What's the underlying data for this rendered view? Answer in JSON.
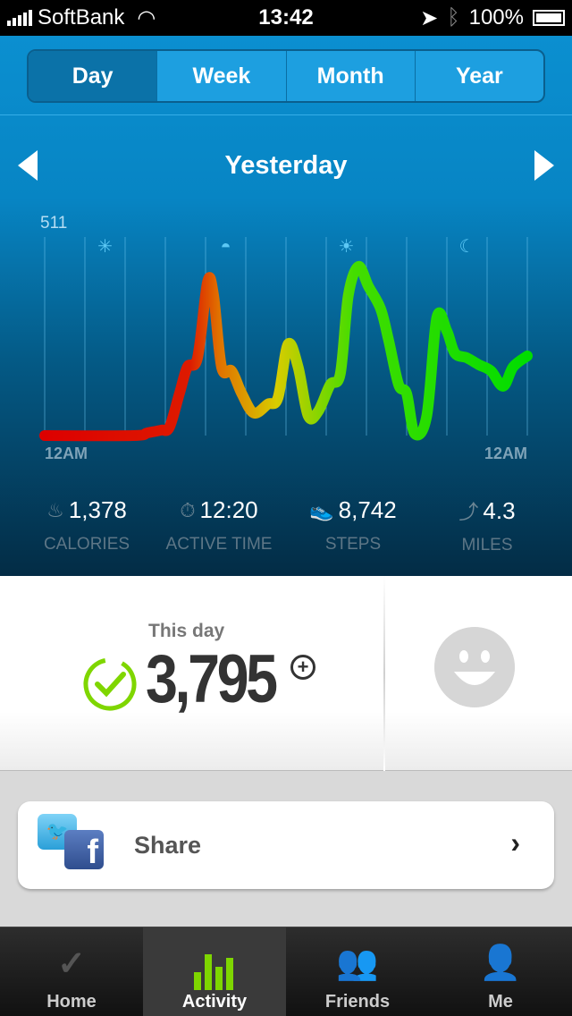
{
  "status": {
    "carrier": "SoftBank",
    "time": "13:42",
    "battery": "100%"
  },
  "segments": [
    "Day",
    "Week",
    "Month",
    "Year"
  ],
  "selected_segment": "Day",
  "period_title": "Yesterday",
  "chart_data": {
    "type": "line",
    "y_max_label": "511",
    "ylim": [
      0,
      511
    ],
    "xlim": [
      0,
      24
    ],
    "x_tick_labels": [
      "12AM",
      "12AM"
    ],
    "time_icons": [
      "night-star-icon",
      "sunrise-icon",
      "sun-icon",
      "moon-icon"
    ],
    "color_scale": [
      "#dd0000",
      "#e07000",
      "#d8cc00",
      "#00dd00"
    ],
    "x": [
      0,
      4.4,
      5.1,
      5.8,
      6.2,
      6.7,
      7.1,
      7.6,
      8.1,
      8.4,
      8.8,
      9.3,
      9.8,
      10.4,
      11.1,
      11.6,
      12.1,
      12.6,
      13.1,
      13.6,
      14.2,
      14.7,
      15.1,
      15.6,
      16.1,
      16.7,
      17.1,
      17.6,
      18,
      18.4,
      19,
      19.5,
      20,
      20.4,
      21,
      21.6,
      22.2,
      22.8,
      23.3,
      24
    ],
    "y": [
      0,
      0,
      7,
      14,
      21,
      108,
      177,
      200,
      396,
      360,
      175,
      166,
      108,
      58,
      81,
      97,
      235,
      177,
      51,
      62,
      131,
      159,
      361,
      435,
      384,
      327,
      246,
      131,
      108,
      5,
      51,
      304,
      269,
      212,
      200,
      182,
      166,
      127,
      177,
      205
    ]
  },
  "stats": [
    {
      "icon": "flame-icon",
      "value": "1,378",
      "label": "CALORIES"
    },
    {
      "icon": "stopwatch-icon",
      "value": "12:20",
      "label": "ACTIVE TIME"
    },
    {
      "icon": "shoe-icon",
      "value": "8,742",
      "label": "STEPS"
    },
    {
      "icon": "path-icon",
      "value": "4.3",
      "label": "MILES"
    }
  ],
  "summary": {
    "label": "This day",
    "score": "3,795",
    "goal_met": true
  },
  "share": {
    "label": "Share"
  },
  "tabs": [
    {
      "label": "Home"
    },
    {
      "label": "Activity"
    },
    {
      "label": "Friends"
    },
    {
      "label": "Me"
    }
  ],
  "active_tab": "Activity"
}
